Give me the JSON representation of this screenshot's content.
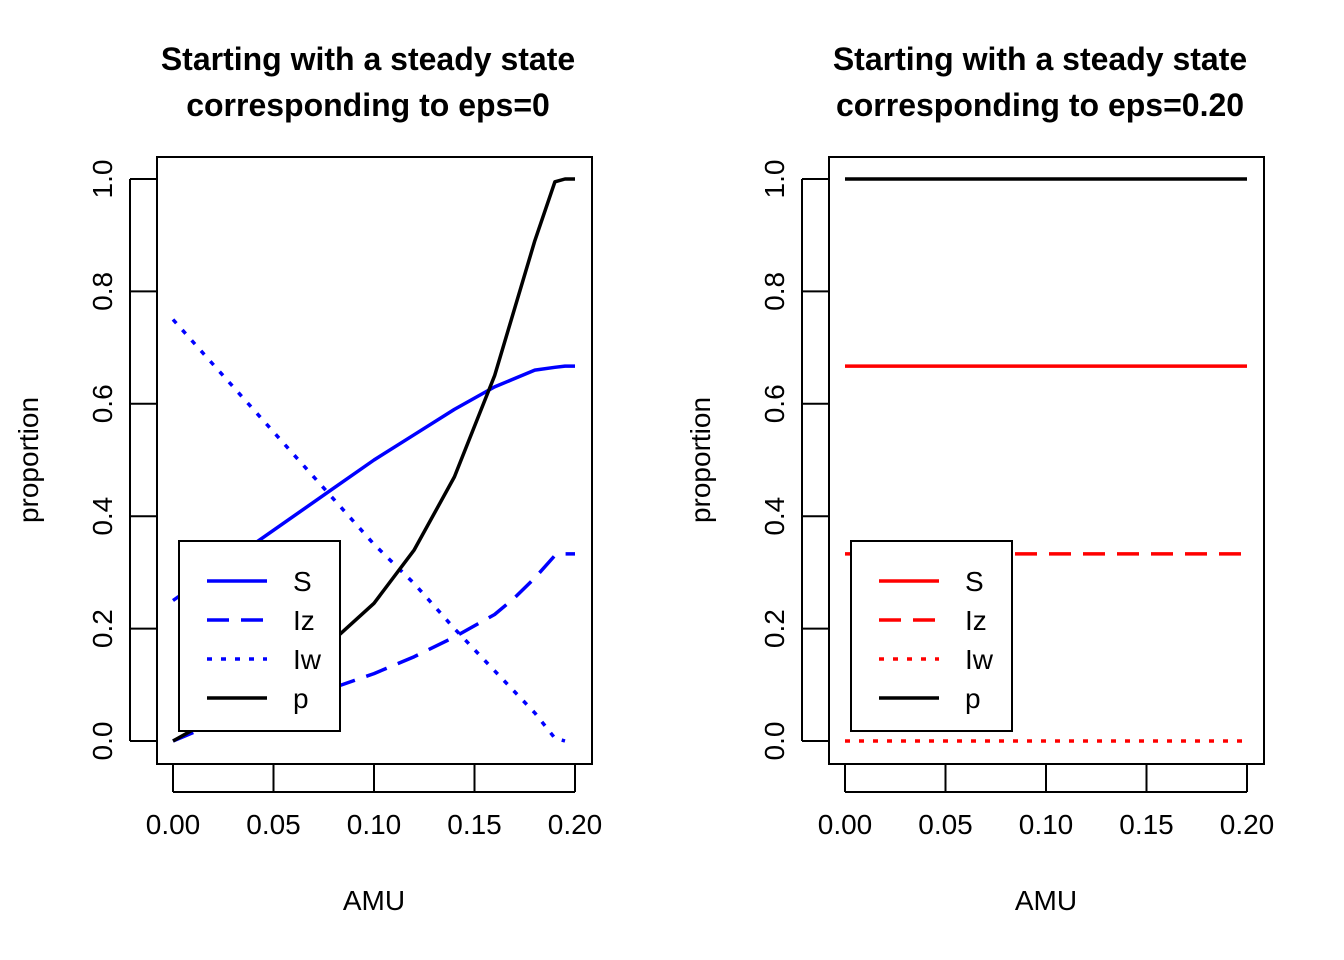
{
  "chart_data": [
    {
      "type": "line",
      "title": [
        "Starting with a steady state",
        "corresponding to eps=0"
      ],
      "xlabel": "AMU",
      "ylabel": "proportion",
      "xlim": [
        0,
        0.2
      ],
      "ylim": [
        0,
        1
      ],
      "xticks": [
        "0.00",
        "0.05",
        "0.10",
        "0.15",
        "0.20"
      ],
      "yticks": [
        "0.0",
        "0.2",
        "0.4",
        "0.6",
        "0.8",
        "1.0"
      ],
      "legend_position": "bottom-left",
      "series": [
        {
          "name": "S",
          "color": "#0000ff",
          "dash": "solid",
          "x": [
            0,
            0.02,
            0.04,
            0.06,
            0.08,
            0.1,
            0.12,
            0.14,
            0.16,
            0.18,
            0.19,
            0.195,
            0.2
          ],
          "y": [
            0.25,
            0.3,
            0.35,
            0.4,
            0.45,
            0.5,
            0.545,
            0.59,
            0.63,
            0.66,
            0.665,
            0.667,
            0.667
          ]
        },
        {
          "name": "Iz",
          "color": "#0000ff",
          "dash": "dashed",
          "x": [
            0,
            0.02,
            0.04,
            0.06,
            0.08,
            0.1,
            0.12,
            0.14,
            0.16,
            0.17,
            0.18,
            0.19,
            0.195,
            0.2
          ],
          "y": [
            0,
            0.03,
            0.055,
            0.075,
            0.095,
            0.12,
            0.15,
            0.185,
            0.225,
            0.255,
            0.29,
            0.33,
            0.333,
            0.333
          ]
        },
        {
          "name": "Iw",
          "color": "#0000ff",
          "dash": "dotted",
          "x": [
            0,
            0.02,
            0.04,
            0.06,
            0.08,
            0.1,
            0.12,
            0.14,
            0.16,
            0.18,
            0.19,
            0.195
          ],
          "y": [
            0.75,
            0.67,
            0.59,
            0.51,
            0.43,
            0.35,
            0.28,
            0.2,
            0.125,
            0.05,
            0.005,
            0
          ]
        },
        {
          "name": "p",
          "color": "#000000",
          "dash": "solid",
          "x": [
            0,
            0.02,
            0.04,
            0.06,
            0.08,
            0.1,
            0.12,
            0.14,
            0.16,
            0.17,
            0.18,
            0.19,
            0.195,
            0.2
          ],
          "y": [
            0,
            0.04,
            0.085,
            0.13,
            0.18,
            0.245,
            0.34,
            0.47,
            0.65,
            0.77,
            0.89,
            0.995,
            1.0,
            1.0
          ]
        }
      ]
    },
    {
      "type": "line",
      "title": [
        "Starting with a steady state",
        "corresponding to eps=0.20"
      ],
      "xlabel": "AMU",
      "ylabel": "proportion",
      "xlim": [
        0,
        0.2
      ],
      "ylim": [
        0,
        1
      ],
      "xticks": [
        "0.00",
        "0.05",
        "0.10",
        "0.15",
        "0.20"
      ],
      "yticks": [
        "0.0",
        "0.2",
        "0.4",
        "0.6",
        "0.8",
        "1.0"
      ],
      "legend_position": "bottom-left",
      "series": [
        {
          "name": "S",
          "color": "#ff0000",
          "dash": "solid",
          "x": [
            0,
            0.2
          ],
          "y": [
            0.667,
            0.667
          ]
        },
        {
          "name": "Iz",
          "color": "#ff0000",
          "dash": "dashed",
          "x": [
            0,
            0.2
          ],
          "y": [
            0.333,
            0.333
          ]
        },
        {
          "name": "Iw",
          "color": "#ff0000",
          "dash": "dotted",
          "x": [
            0,
            0.2
          ],
          "y": [
            0,
            0
          ]
        },
        {
          "name": "p",
          "color": "#000000",
          "dash": "solid",
          "x": [
            0,
            0.2
          ],
          "y": [
            1.0,
            1.0
          ]
        }
      ]
    }
  ]
}
